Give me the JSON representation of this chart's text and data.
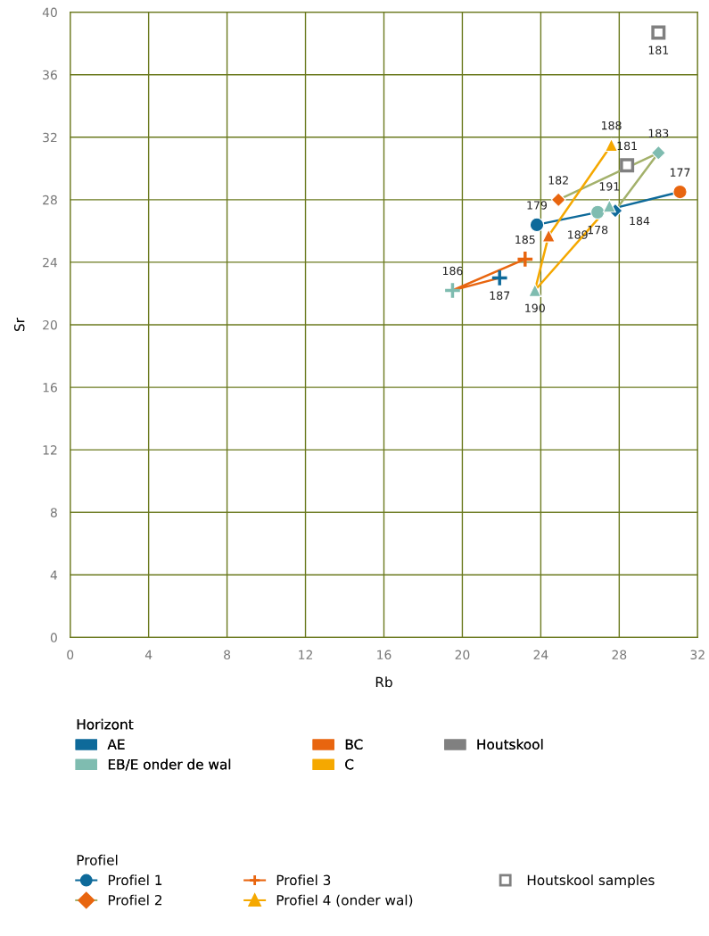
{
  "chart_data": {
    "type": "line",
    "xlabel": "Rb",
    "ylabel": "Sr",
    "xlim": [
      0,
      32
    ],
    "ylim": [
      0,
      40
    ],
    "xticks": [
      0,
      4,
      8,
      12,
      16,
      20,
      24,
      28,
      32
    ],
    "yticks": [
      0,
      4,
      8,
      12,
      16,
      20,
      24,
      28,
      32,
      36,
      40
    ],
    "grid": true,
    "legend": "bottom",
    "legend_title": [
      "Horizont",
      "Profiel"
    ],
    "series": [
      {
        "name": "AE",
        "type": "bar",
        "color": "#0e6a9a"
      },
      {
        "name": "EB/E onder de wal",
        "type": "bar",
        "color": "#7fbcb0"
      },
      {
        "name": "BC",
        "type": "bar",
        "color": "#e8650f"
      },
      {
        "name": "C",
        "type": "bar",
        "color": "#f5a800"
      },
      {
        "name": "Houtskool",
        "type": "bar",
        "color": "#808080"
      },
      {
        "name": "Profiel 1",
        "marker": "circle",
        "color": "#0e6a9a",
        "x": [
          23.8,
          26.9,
          31.1
        ],
        "values": [
          26.4,
          27.2,
          28.5
        ],
        "colors": [
          "#0e6a9a",
          "#7fbcb0",
          "#e8650f"
        ]
      },
      {
        "name": "Profiel 2",
        "marker": "diamond",
        "color": "#a3b16b",
        "x": [
          24.9,
          30.0,
          27.8
        ],
        "values": [
          28.0,
          31.0,
          27.3
        ],
        "colors": [
          "#e8650f",
          "#7fbcb0",
          "#0e6a9a"
        ]
      },
      {
        "name": "Profiel 3",
        "marker": "cross",
        "color": "#e8650f",
        "x": [
          23.2,
          19.5,
          21.9
        ],
        "values": [
          24.2,
          22.2,
          23.0
        ],
        "colors": [
          "#e8650f",
          "#7fbcb0",
          "#0e6a9a"
        ]
      },
      {
        "name": "Profiel 4 (onder wal)",
        "marker": "triangle",
        "color": "#f5a800",
        "x": [
          27.6,
          24.4,
          23.7,
          27.5
        ],
        "values": [
          31.5,
          25.7,
          22.2,
          27.6
        ],
        "colors": [
          "#f5a800",
          "#e8650f",
          "#7fbcb0",
          "#7fbcb0"
        ]
      },
      {
        "name": "Houtskool samples",
        "type": "scatter",
        "marker": "square",
        "color": "#808080",
        "x": [
          30.0,
          28.4
        ],
        "values": [
          38.7,
          30.2
        ],
        "colors": [
          "#808080",
          "#808080"
        ]
      }
    ],
    "annotations": [
      {
        "text": "179",
        "x": 23.8,
        "y": 26.4
      },
      {
        "text": "178",
        "x": 26.9,
        "y": 27.2
      },
      {
        "text": "177",
        "x": 31.1,
        "y": 28.5
      },
      {
        "text": "182",
        "x": 24.9,
        "y": 28.0
      },
      {
        "text": "183",
        "x": 30.0,
        "y": 31.0
      },
      {
        "text": "184",
        "x": 27.8,
        "y": 27.3
      },
      {
        "text": "185",
        "x": 23.2,
        "y": 24.2
      },
      {
        "text": "186",
        "x": 19.5,
        "y": 22.2
      },
      {
        "text": "187",
        "x": 21.9,
        "y": 23.0
      },
      {
        "text": "188",
        "x": 27.6,
        "y": 31.5
      },
      {
        "text": "189",
        "x": 24.4,
        "y": 25.7
      },
      {
        "text": "190",
        "x": 23.7,
        "y": 22.2
      },
      {
        "text": "191",
        "x": 27.5,
        "y": 27.6
      },
      {
        "text": "181",
        "x": 30.0,
        "y": 38.7
      },
      {
        "text": "181",
        "x": 28.4,
        "y": 30.2
      }
    ]
  }
}
